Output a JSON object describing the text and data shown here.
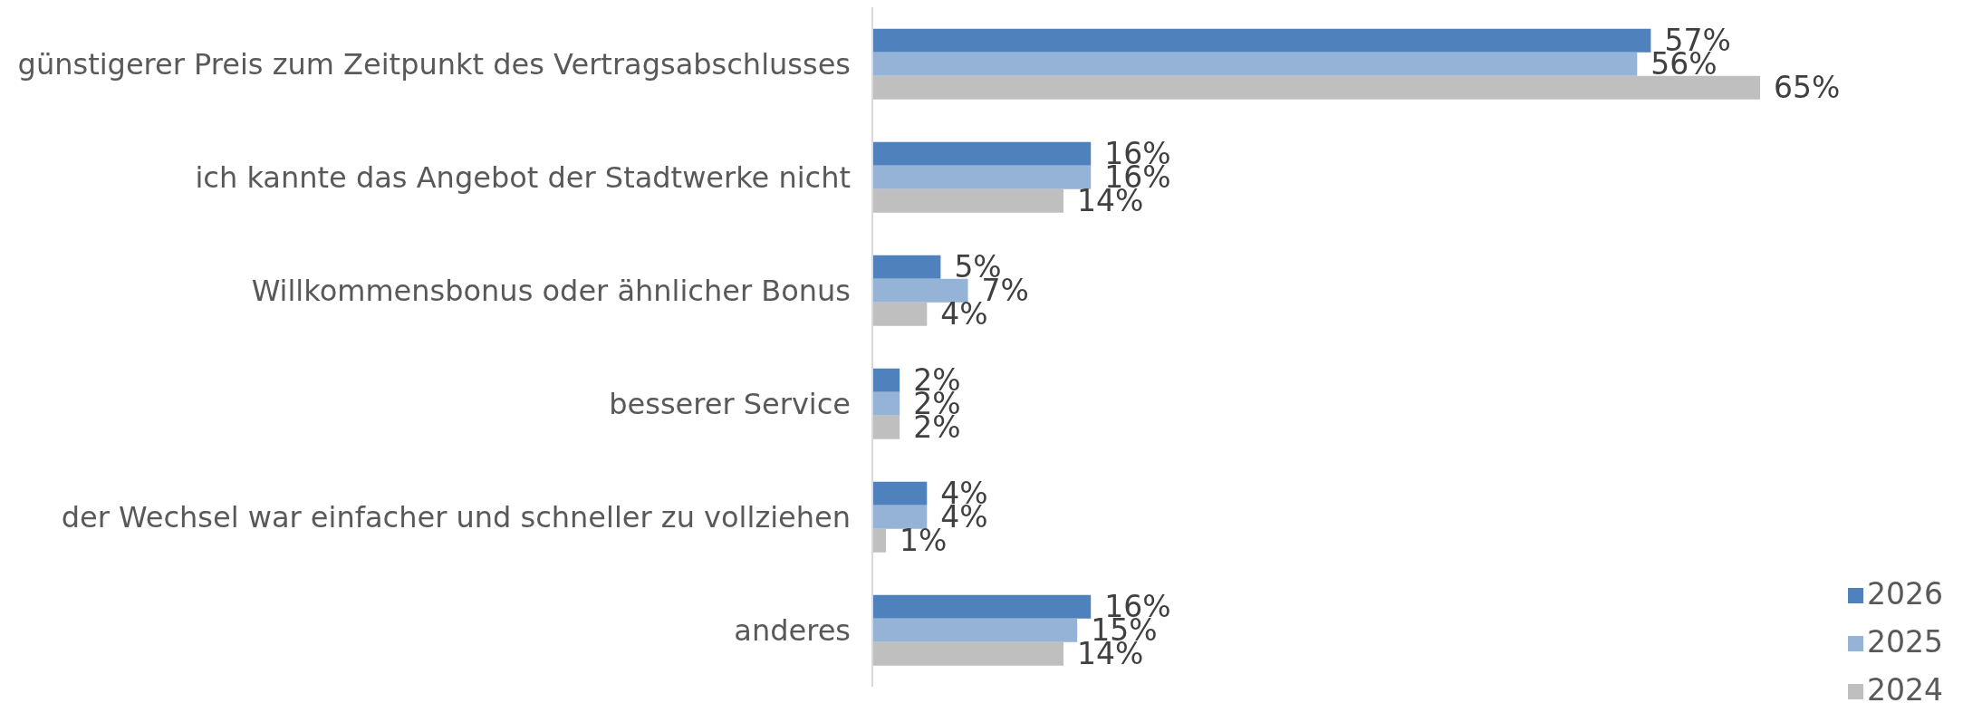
{
  "chart_data": {
    "type": "bar",
    "orientation": "horizontal",
    "categories": [
      "günstigerer Preis zum Zeitpunkt des Vertragsabschlusses",
      "ich kannte das Angebot der Stadtwerke nicht",
      "Willkommensbonus oder ähnlicher Bonus",
      "besserer Service",
      "der Wechsel war einfacher und schneller zu vollziehen",
      "anderes"
    ],
    "series": [
      {
        "name": "2026",
        "color": "#4f81bd",
        "values": [
          57,
          16,
          5,
          2,
          4,
          16
        ],
        "value_labels": [
          "57%",
          "16%",
          "5%",
          "2%",
          "4%",
          "16%"
        ]
      },
      {
        "name": "2025",
        "color": "#95b3d7",
        "values": [
          56,
          16,
          7,
          2,
          4,
          15
        ],
        "value_labels": [
          "56%",
          "16%",
          "7%",
          "2%",
          "4%",
          "15%"
        ]
      },
      {
        "name": "2024",
        "color": "#bfbfbf",
        "values": [
          65,
          14,
          4,
          2,
          1,
          14
        ],
        "value_labels": [
          "65%",
          "14%",
          "4%",
          "2%",
          "1%",
          "14%"
        ]
      }
    ],
    "legend": "bottom right"
  }
}
